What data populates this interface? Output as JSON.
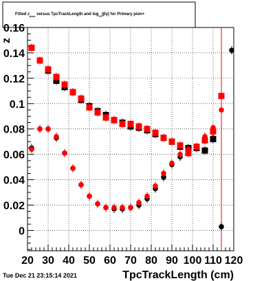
{
  "title": {
    "parts": [
      "Fitted  z",
      "pion",
      "  versus TpcTrackLength and log",
      "10",
      "(βγ) for Primary pion+"
    ]
  },
  "timestamp": "Tue Dec 21 23:15:14 2021",
  "chart_data": {
    "type": "scatter",
    "title": "Fitted z_pion versus TpcTrackLength and log10(βγ) for Primary pion+",
    "xlabel": "TpcTrackLength (cm)",
    "ylabel": "z",
    "ylabel_partial": "z_{π}",
    "xlim": [
      20,
      120
    ],
    "ylim": [
      -0.016,
      0.16
    ],
    "x_ticks": [
      20,
      30,
      40,
      50,
      60,
      70,
      80,
      90,
      100,
      110,
      120
    ],
    "x_tick_labels": [
      "20",
      "30",
      "40",
      "50",
      "60",
      "70",
      "80",
      "90",
      "100",
      "110",
      "120"
    ],
    "y_ticks": [
      0,
      0.02,
      0.04,
      0.06,
      0.08,
      0.1,
      0.12,
      0.14,
      0.16
    ],
    "y_tick_labels": [
      "0",
      "0.02",
      "0.04",
      "0.06",
      "0.08",
      "0.1",
      "0.12",
      "0.14",
      "0.16"
    ],
    "grid": true,
    "vertical_line_x": 114,
    "series": [
      {
        "marker": "circle",
        "color": "#000000",
        "points": [
          [
            22,
            0.065
          ],
          [
            26,
            0.08
          ],
          [
            30,
            0.08
          ],
          [
            34,
            0.073
          ],
          [
            38,
            0.061
          ],
          [
            42,
            0.049
          ],
          [
            46,
            0.036
          ],
          [
            50,
            0.027
          ],
          [
            54,
            0.021
          ],
          [
            58,
            0.018
          ],
          [
            62,
            0.017
          ],
          [
            66,
            0.017
          ],
          [
            70,
            0.018
          ],
          [
            74,
            0.02
          ],
          [
            78,
            0.025
          ],
          [
            82,
            0.033
          ],
          [
            86,
            0.042
          ],
          [
            90,
            0.052
          ],
          [
            94,
            0.058
          ],
          [
            98,
            0.062
          ],
          [
            102,
            0.065
          ],
          [
            106,
            0.071
          ],
          [
            110,
            0.073
          ],
          [
            114,
            0.003
          ],
          [
            119,
            0.142
          ]
        ]
      },
      {
        "marker": "square",
        "color": "#000000",
        "points": [
          [
            22,
            0.144
          ],
          [
            26,
            0.134
          ],
          [
            30,
            0.126
          ],
          [
            34,
            0.118
          ],
          [
            38,
            0.113
          ],
          [
            42,
            0.109
          ],
          [
            46,
            0.103
          ],
          [
            50,
            0.098
          ],
          [
            54,
            0.094
          ],
          [
            58,
            0.091
          ],
          [
            62,
            0.087
          ],
          [
            66,
            0.085
          ],
          [
            70,
            0.082
          ],
          [
            74,
            0.081
          ],
          [
            78,
            0.079
          ],
          [
            82,
            0.076
          ],
          [
            86,
            0.073
          ],
          [
            90,
            0.07
          ],
          [
            94,
            0.066
          ],
          [
            98,
            0.065
          ],
          [
            102,
            0.065
          ],
          [
            106,
            0.063
          ],
          [
            110,
            0.072
          ]
        ]
      },
      {
        "marker": "circle",
        "color": "#ff0000",
        "points": [
          [
            22,
            0.064
          ],
          [
            26,
            0.08
          ],
          [
            30,
            0.08
          ],
          [
            34,
            0.074
          ],
          [
            38,
            0.061
          ],
          [
            42,
            0.049
          ],
          [
            46,
            0.036
          ],
          [
            50,
            0.027
          ],
          [
            54,
            0.021
          ],
          [
            58,
            0.018
          ],
          [
            62,
            0.018
          ],
          [
            66,
            0.018
          ],
          [
            70,
            0.018
          ],
          [
            74,
            0.022
          ],
          [
            78,
            0.027
          ],
          [
            82,
            0.035
          ],
          [
            86,
            0.045
          ],
          [
            90,
            0.053
          ],
          [
            94,
            0.06
          ],
          [
            98,
            0.064
          ],
          [
            102,
            0.066
          ],
          [
            106,
            0.074
          ],
          [
            110,
            0.081
          ],
          [
            114,
            0.095
          ]
        ]
      },
      {
        "marker": "square",
        "color": "#ff0000",
        "points": [
          [
            22,
            0.144
          ],
          [
            26,
            0.134
          ],
          [
            30,
            0.127
          ],
          [
            34,
            0.121
          ],
          [
            38,
            0.115
          ],
          [
            42,
            0.109
          ],
          [
            46,
            0.104
          ],
          [
            50,
            0.097
          ],
          [
            54,
            0.093
          ],
          [
            58,
            0.089
          ],
          [
            62,
            0.087
          ],
          [
            66,
            0.084
          ],
          [
            70,
            0.084
          ],
          [
            74,
            0.082
          ],
          [
            78,
            0.08
          ],
          [
            82,
            0.077
          ],
          [
            86,
            0.073
          ],
          [
            90,
            0.07
          ],
          [
            94,
            0.067
          ],
          [
            98,
            0.061
          ],
          [
            102,
            0.066
          ],
          [
            106,
            0.071
          ],
          [
            110,
            0.078
          ],
          [
            114,
            0.106
          ]
        ]
      }
    ]
  }
}
